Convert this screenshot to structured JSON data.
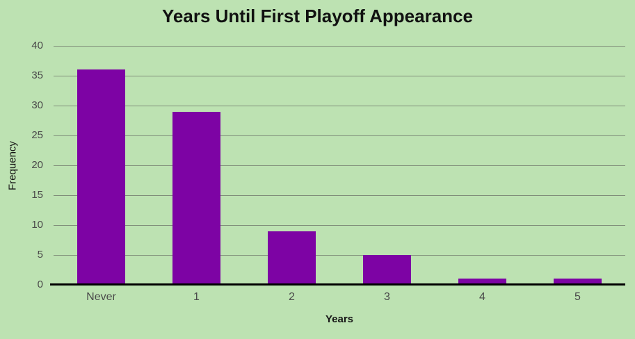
{
  "chart_data": {
    "type": "bar",
    "title": "Years Until First Playoff Appearance",
    "categories": [
      "Never",
      "1",
      "2",
      "3",
      "4",
      "5"
    ],
    "values": [
      36,
      29,
      9,
      5,
      1,
      1
    ],
    "xlabel": "Years",
    "ylabel": "Frequency",
    "ylim": [
      0,
      40
    ],
    "yticks": [
      0,
      5,
      10,
      15,
      20,
      25,
      30,
      35,
      40
    ],
    "grid": true,
    "legend": "none",
    "colors": {
      "bar": "#7d03a4",
      "background": "#bde2b2",
      "gridline": "#7f8d79",
      "axis_line": "#000000",
      "tick_label": "#4a4a4a",
      "title_text": "#111111",
      "axis_title_text": "#161616"
    }
  }
}
